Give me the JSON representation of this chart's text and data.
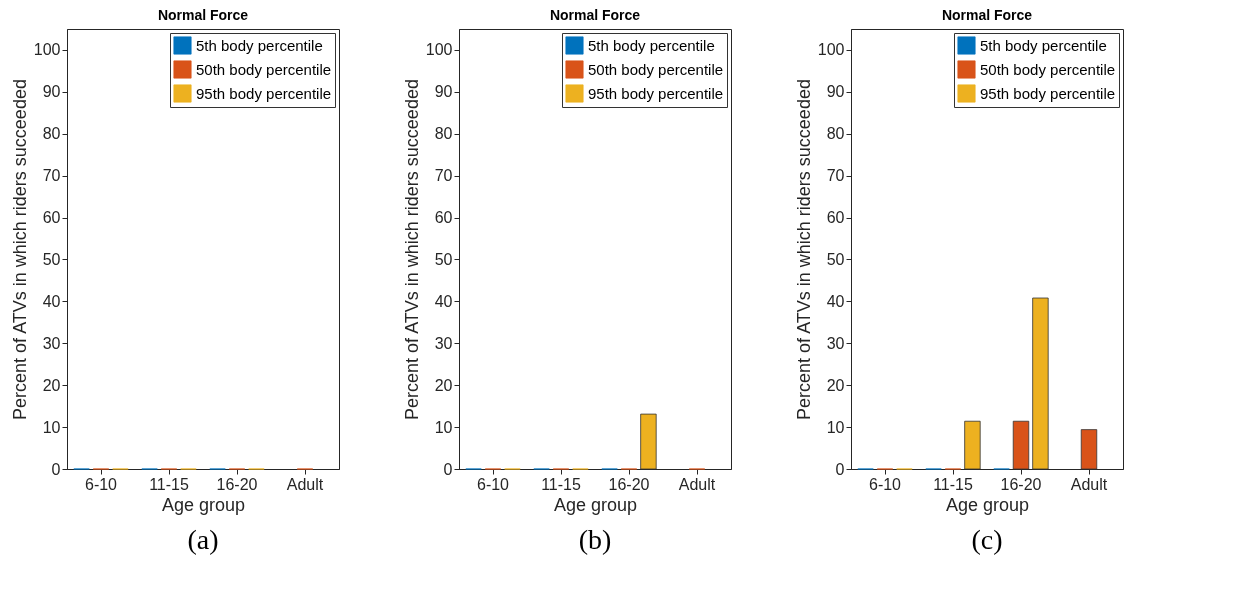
{
  "chart_data": [
    {
      "type": "bar",
      "title": "Normal Force",
      "xlabel": "Age group",
      "ylabel": "Percent of ATVs in which riders succeeded",
      "categories": [
        "6-10",
        "11-15",
        "16-20",
        "Adult"
      ],
      "series": [
        {
          "name": "5th body percentile",
          "color": "#0072bd",
          "values": [
            0,
            0,
            0,
            null
          ]
        },
        {
          "name": "50th body percentile",
          "color": "#d95319",
          "values": [
            0,
            0,
            0,
            0
          ]
        },
        {
          "name": "95th body percentile",
          "color": "#edb120",
          "values": [
            0,
            0,
            0,
            null
          ]
        }
      ],
      "ylim": [
        0,
        105
      ],
      "yticks": [
        0,
        10,
        20,
        30,
        40,
        50,
        60,
        70,
        80,
        90,
        100
      ],
      "legend": "top right",
      "annotations": [
        "(a)"
      ]
    },
    {
      "type": "bar",
      "title": "Normal Force",
      "xlabel": "Age group",
      "ylabel": "Percent of ATVs in which riders succeeded",
      "categories": [
        "6-10",
        "11-15",
        "16-20",
        "Adult"
      ],
      "series": [
        {
          "name": "5th body percentile",
          "color": "#0072bd",
          "values": [
            0,
            0,
            0,
            null
          ]
        },
        {
          "name": "50th body percentile",
          "color": "#d95319",
          "values": [
            0,
            0,
            0,
            0
          ]
        },
        {
          "name": "95th body percentile",
          "color": "#edb120",
          "values": [
            0,
            0,
            13.1,
            null
          ]
        }
      ],
      "ylim": [
        0,
        105
      ],
      "yticks": [
        0,
        10,
        20,
        30,
        40,
        50,
        60,
        70,
        80,
        90,
        100
      ],
      "legend": "top right",
      "annotations": [
        "(b)"
      ]
    },
    {
      "type": "bar",
      "title": "Normal Force",
      "xlabel": "Age group",
      "ylabel": "Percent of ATVs in which riders succeeded",
      "categories": [
        "6-10",
        "11-15",
        "16-20",
        "Adult"
      ],
      "series": [
        {
          "name": "5th body percentile",
          "color": "#0072bd",
          "values": [
            0,
            0,
            0,
            null
          ]
        },
        {
          "name": "50th body percentile",
          "color": "#d95319",
          "values": [
            0,
            0,
            11.4,
            9.4
          ]
        },
        {
          "name": "95th body percentile",
          "color": "#edb120",
          "values": [
            0,
            11.4,
            40.8,
            null
          ]
        }
      ],
      "ylim": [
        0,
        105
      ],
      "yticks": [
        0,
        10,
        20,
        30,
        40,
        50,
        60,
        70,
        80,
        90,
        100
      ],
      "legend": "top right",
      "annotations": [
        "(c)"
      ]
    }
  ]
}
